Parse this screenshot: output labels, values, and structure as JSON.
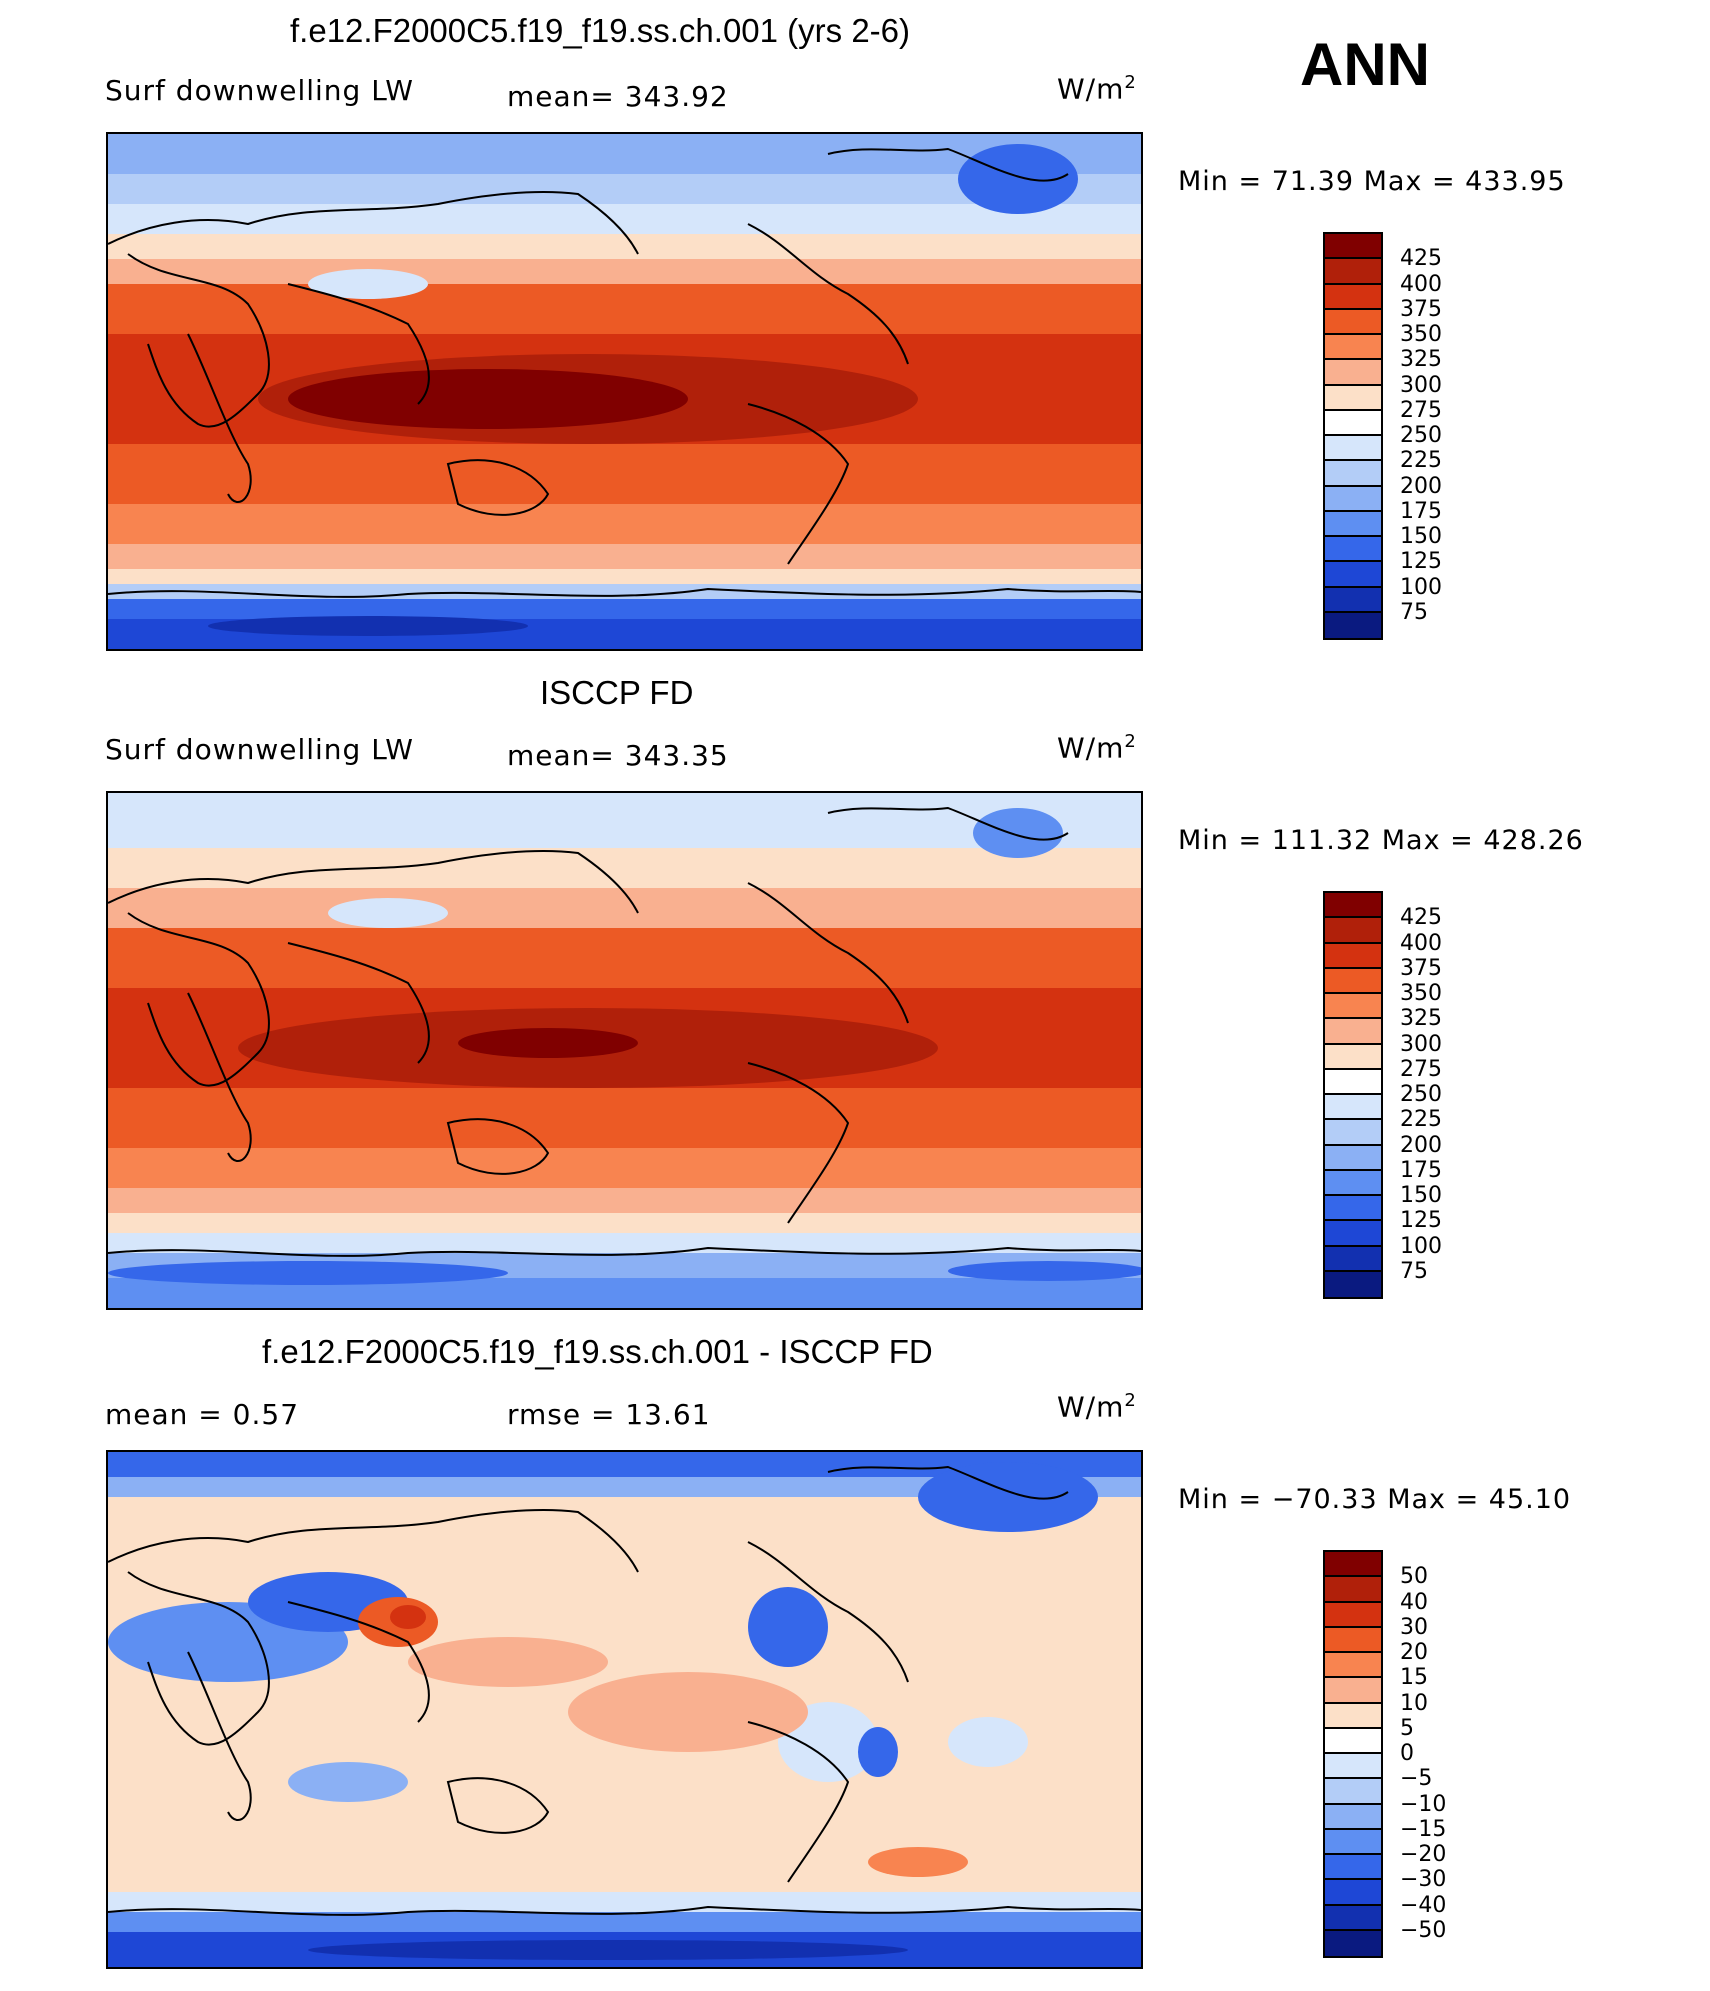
{
  "season": "ANN",
  "panels": [
    {
      "title": "f.e12.F2000C5.f19_f19.ss.ch.001 (yrs 2-6)",
      "left_label": "Surf  downwelling LW",
      "mid_label": "mean=  343.92",
      "units_base": "W/m",
      "units_exp": "2",
      "minmax": "Min  =    71.39  Max  =  433.95",
      "colorbar": {
        "colors": [
          "#800000",
          "#b0200a",
          "#d43210",
          "#ec5a25",
          "#f88450",
          "#f9b090",
          "#fce0c8",
          "#ffffff",
          "#d6e6fb",
          "#b3cdf7",
          "#8bb0f4",
          "#5e8ff2",
          "#3567ea",
          "#1e47d6",
          "#1230b0",
          "#0a1a80"
        ],
        "labels": [
          "425",
          "400",
          "375",
          "350",
          "325",
          "300",
          "275",
          "250",
          "225",
          "200",
          "175",
          "150",
          "125",
          "100",
          "75"
        ]
      }
    },
    {
      "title": "ISCCP FD",
      "left_label": "Surf  downwelling LW",
      "mid_label": "mean=  343.35",
      "units_base": "W/m",
      "units_exp": "2",
      "minmax": "Min  =  111.32  Max  =  428.26",
      "colorbar": {
        "colors": [
          "#800000",
          "#b0200a",
          "#d43210",
          "#ec5a25",
          "#f88450",
          "#f9b090",
          "#fce0c8",
          "#ffffff",
          "#d6e6fb",
          "#b3cdf7",
          "#8bb0f4",
          "#5e8ff2",
          "#3567ea",
          "#1e47d6",
          "#1230b0",
          "#0a1a80"
        ],
        "labels": [
          "425",
          "400",
          "375",
          "350",
          "325",
          "300",
          "275",
          "250",
          "225",
          "200",
          "175",
          "150",
          "125",
          "100",
          "75"
        ]
      }
    },
    {
      "title": "f.e12.F2000C5.f19_f19.ss.ch.001 - ISCCP FD",
      "left_label": "mean  =     0.57",
      "mid_label": "rmse  =    13.61",
      "units_base": "W/m",
      "units_exp": "2",
      "minmax": "Min  =  −70.33  Max  =    45.10",
      "colorbar": {
        "colors": [
          "#800000",
          "#b0200a",
          "#d43210",
          "#ec5a25",
          "#f88450",
          "#f9b090",
          "#fce0c8",
          "#ffffff",
          "#d6e6fb",
          "#b3cdf7",
          "#8bb0f4",
          "#5e8ff2",
          "#3567ea",
          "#1e47d6",
          "#1230b0",
          "#0a1a80"
        ],
        "labels": [
          "50",
          "40",
          "30",
          "20",
          "15",
          "10",
          "5",
          "0",
          "−5",
          "−10",
          "−15",
          "−20",
          "−30",
          "−40",
          "−50"
        ]
      }
    }
  ]
}
